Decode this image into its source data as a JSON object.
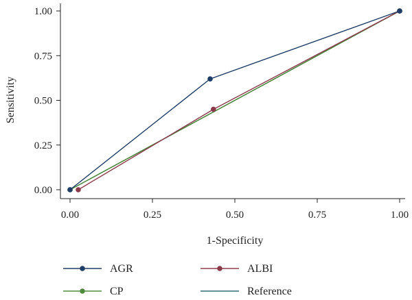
{
  "chart_data": {
    "type": "line",
    "title": "",
    "xlabel": "1-Specificity",
    "ylabel": "Sensitivity",
    "xlim": [
      0,
      1
    ],
    "ylim": [
      0,
      1
    ],
    "x_ticks": [
      0,
      0.25,
      0.5,
      0.75,
      1.0
    ],
    "y_ticks": [
      0,
      0.25,
      0.5,
      0.75,
      1.0
    ],
    "x_tick_labels": [
      "0.00",
      "0.25",
      "0.50",
      "0.75",
      "1.00"
    ],
    "y_tick_labels": [
      "0.00",
      "0.25",
      "0.50",
      "0.75",
      "1.00"
    ],
    "grid": false,
    "legend_position": "bottom",
    "series": [
      {
        "name": "AGR",
        "color": "#1f3d66",
        "markers": true,
        "points": [
          [
            0,
            0
          ],
          [
            0.425,
            0.62
          ],
          [
            1,
            1
          ]
        ]
      },
      {
        "name": "ALBI",
        "color": "#8b3a4b",
        "markers": true,
        "points": [
          [
            0.025,
            0
          ],
          [
            0.435,
            0.45
          ],
          [
            1,
            1
          ]
        ]
      },
      {
        "name": "CP",
        "color": "#4f8a3c",
        "markers": true,
        "points": [
          [
            0,
            0
          ],
          [
            1,
            1
          ]
        ]
      },
      {
        "name": "Reference",
        "color": "#2e6b75",
        "markers": false,
        "points": [
          [
            0,
            0
          ],
          [
            1,
            1
          ]
        ]
      }
    ]
  }
}
